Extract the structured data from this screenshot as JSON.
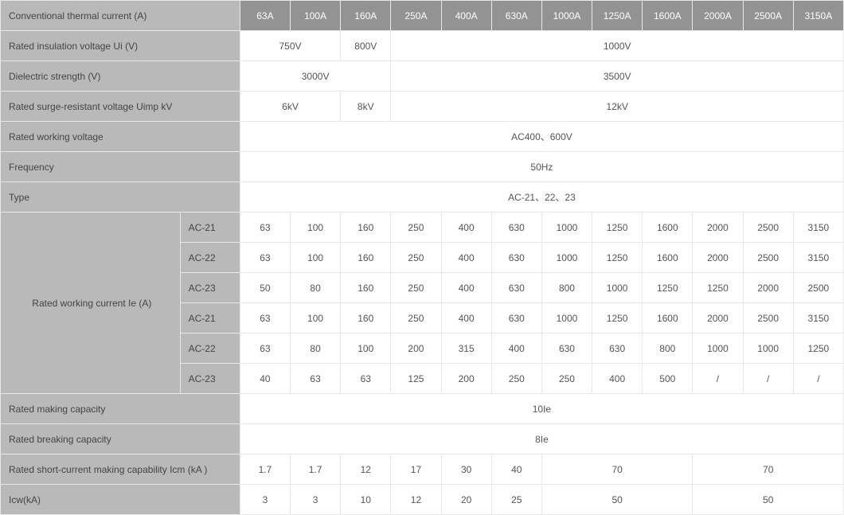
{
  "colors": {
    "header_bg": "#939393",
    "header_fg": "#ffffff",
    "label_bg": "#b9b9b9",
    "label_fg": "#444444",
    "cell_fg": "#555555",
    "border": "#e8e8e8",
    "bg": "#ffffff"
  },
  "header": {
    "label": "Conventional thermal current (A)",
    "cols": [
      "63A",
      "100A",
      "160A",
      "250A",
      "400A",
      "630A",
      "1000A",
      "1250A",
      "1600A",
      "2000A",
      "2500A",
      "3150A"
    ]
  },
  "rows": {
    "r1": {
      "label": "Rated insulation voltage Ui (V)",
      "c0": "750V",
      "c1": "800V",
      "c2": "1000V"
    },
    "r2": {
      "label": "Dielectric strength (V)",
      "c0": "3000V",
      "c1": "3500V"
    },
    "r3": {
      "label": "Rated surge-resistant voltage Uimp kV",
      "c0": "6kV",
      "c1": "8kV",
      "c2": "12kV"
    },
    "r4": {
      "label": "Rated working voltage",
      "c0": "AC400、600V"
    },
    "r5": {
      "label": "Frequency",
      "c0": "50Hz"
    },
    "r6": {
      "label": "Type",
      "c0": "AC-21、22、23"
    },
    "r7": {
      "label": "Rated working current Ie (A)",
      "subs": [
        "AC-21",
        "AC-22",
        "AC-23",
        "AC-21",
        "AC-22",
        "AC-23"
      ],
      "data": [
        [
          "63",
          "100",
          "160",
          "250",
          "400",
          "630",
          "1000",
          "1250",
          "1600",
          "2000",
          "2500",
          "3150"
        ],
        [
          "63",
          "100",
          "160",
          "250",
          "400",
          "630",
          "1000",
          "1250",
          "1600",
          "2000",
          "2500",
          "3150"
        ],
        [
          "50",
          "80",
          "160",
          "250",
          "400",
          "630",
          "800",
          "1000",
          "1250",
          "1250",
          "2000",
          "2500"
        ],
        [
          "63",
          "100",
          "160",
          "250",
          "400",
          "630",
          "1000",
          "1250",
          "1600",
          "2000",
          "2500",
          "3150"
        ],
        [
          "63",
          "80",
          "100",
          "200",
          "315",
          "400",
          "630",
          "630",
          "800",
          "1000",
          "1000",
          "1250"
        ],
        [
          "40",
          "63",
          "63",
          "125",
          "200",
          "250",
          "250",
          "400",
          "500",
          "/",
          "/",
          "/"
        ]
      ]
    },
    "r8": {
      "label": "Rated making capacity",
      "c0": "10Ie"
    },
    "r9": {
      "label": "Rated breaking capacity",
      "c0": "8Ie"
    },
    "r10": {
      "label": "Rated short-current making capability Icm (kA )",
      "cells": [
        "1.7",
        "1.7",
        "12",
        "17",
        "30",
        "40",
        "70",
        "70"
      ]
    },
    "r11": {
      "label": "Icw(kA)",
      "cells": [
        "3",
        "3",
        "10",
        "12",
        "20",
        "25",
        "50",
        "50"
      ]
    }
  }
}
